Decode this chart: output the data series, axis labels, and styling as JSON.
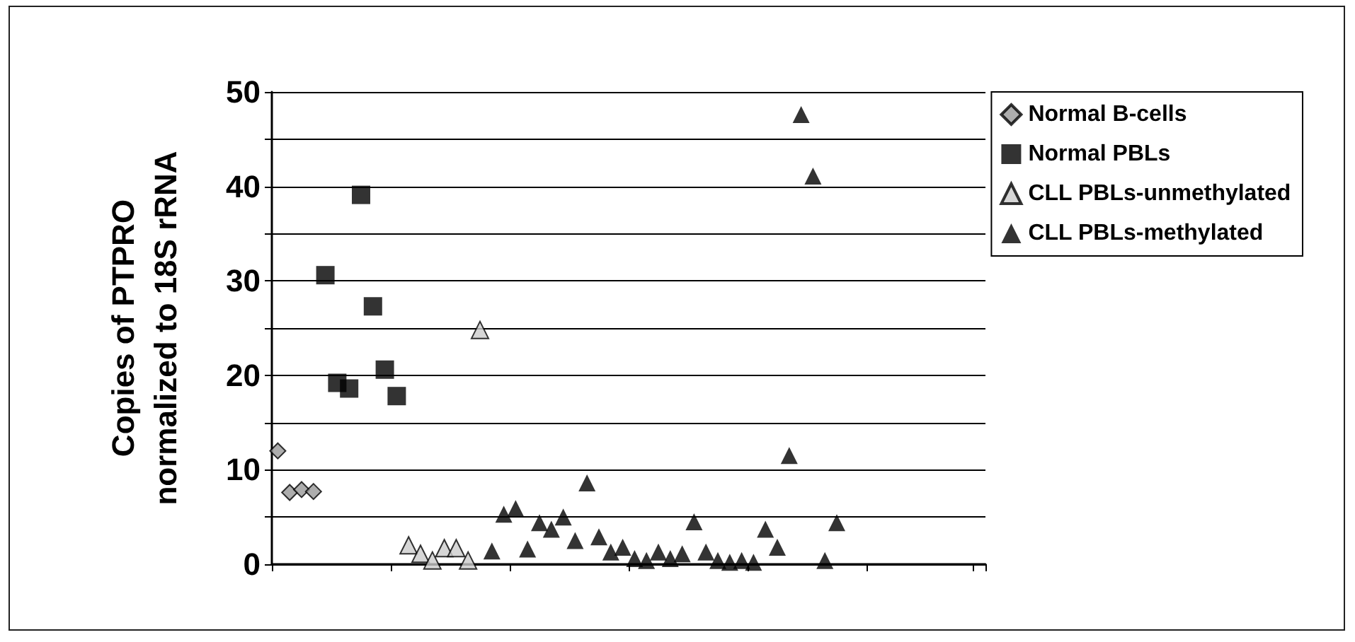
{
  "chart_data": {
    "type": "scatter",
    "ylabel": "Copies of PTPRO\nnormalized to 18S rRNA",
    "categories": [
      null,
      null,
      null,
      null,
      null,
      null,
      null,
      null,
      null,
      null,
      null,
      null,
      null,
      null,
      null,
      null,
      null,
      null,
      null,
      null,
      null,
      null,
      null,
      null,
      null,
      null,
      null,
      null,
      null,
      null,
      null,
      null,
      null,
      null,
      null,
      null,
      null,
      null,
      null,
      null,
      null,
      null,
      null,
      null,
      null,
      null,
      null,
      null,
      null,
      null,
      null,
      null,
      null,
      null,
      null,
      null,
      null,
      null,
      null,
      null
    ],
    "ylim": [
      0,
      50
    ],
    "yticks": [
      0,
      {
        "value": 5,
        "label": null
      },
      10,
      {
        "value": 15,
        "label": null
      },
      20,
      {
        "value": 25,
        "label": null
      },
      30,
      {
        "value": 35,
        "label": null
      },
      40,
      {
        "value": 45,
        "label": null
      },
      50
    ],
    "grid": "y",
    "legend": "top right",
    "tick_labels": "y",
    "series": [
      {
        "name": "Normal B-cells",
        "color": "#999999",
        "marker": "diamond",
        "values": [
          12.0,
          7.6,
          7.9,
          7.7,
          null,
          null,
          null,
          null,
          null,
          null,
          null,
          null,
          null,
          null,
          null,
          null,
          null,
          null,
          null,
          null,
          null,
          null,
          null,
          null,
          null,
          null,
          null,
          null,
          null,
          null,
          null,
          null,
          null,
          null,
          null,
          null,
          null,
          null,
          null,
          null,
          null,
          null,
          null,
          null,
          null,
          null,
          null,
          null,
          null,
          null,
          null,
          null,
          null,
          null,
          null,
          null,
          null,
          null,
          null,
          null
        ]
      },
      {
        "name": "Normal PBLs",
        "color": "#000000",
        "marker": "square",
        "values": [
          null,
          null,
          null,
          null,
          30.6,
          19.2,
          18.6,
          39.1,
          27.3,
          20.6,
          17.8,
          null,
          null,
          null,
          null,
          null,
          null,
          null,
          null,
          null,
          null,
          null,
          null,
          null,
          null,
          null,
          null,
          null,
          null,
          null,
          null,
          null,
          null,
          null,
          null,
          null,
          null,
          null,
          null,
          null,
          null,
          null,
          null,
          null,
          null,
          null,
          null,
          null,
          null,
          null,
          null,
          null,
          null,
          null,
          null,
          null,
          null,
          null,
          null,
          null
        ]
      },
      {
        "name": "CLL PBLs-unmethylated",
        "color": "#cccccc",
        "marker": "triangle",
        "values": [
          null,
          null,
          null,
          null,
          null,
          null,
          null,
          null,
          null,
          null,
          null,
          2.0,
          1.1,
          0.4,
          1.7,
          1.7,
          0.4,
          24.8,
          null,
          null,
          null,
          null,
          null,
          null,
          null,
          null,
          null,
          null,
          null,
          null,
          null,
          null,
          null,
          null,
          null,
          null,
          null,
          null,
          null,
          null,
          null,
          null,
          null,
          null,
          null,
          null,
          null,
          null,
          null,
          null,
          null,
          null,
          null,
          null,
          null,
          null,
          null,
          null,
          null,
          null
        ]
      },
      {
        "name": "CLL PBLs-methylated",
        "color": "#000000",
        "marker": "triangle",
        "values": [
          null,
          null,
          null,
          null,
          null,
          null,
          null,
          null,
          null,
          null,
          null,
          null,
          null,
          null,
          null,
          null,
          null,
          null,
          1.4,
          5.3,
          5.9,
          1.6,
          4.4,
          3.7,
          5.0,
          2.5,
          8.6,
          2.9,
          1.3,
          1.8,
          0.6,
          0.4,
          1.3,
          0.6,
          1.1,
          4.5,
          1.3,
          0.4,
          0.2,
          0.4,
          0.2,
          3.7,
          1.8,
          11.5,
          47.6,
          41.1,
          0.4,
          4.4,
          null,
          null,
          null,
          null,
          null,
          null,
          null,
          null,
          null,
          null,
          null,
          null
        ]
      }
    ]
  }
}
